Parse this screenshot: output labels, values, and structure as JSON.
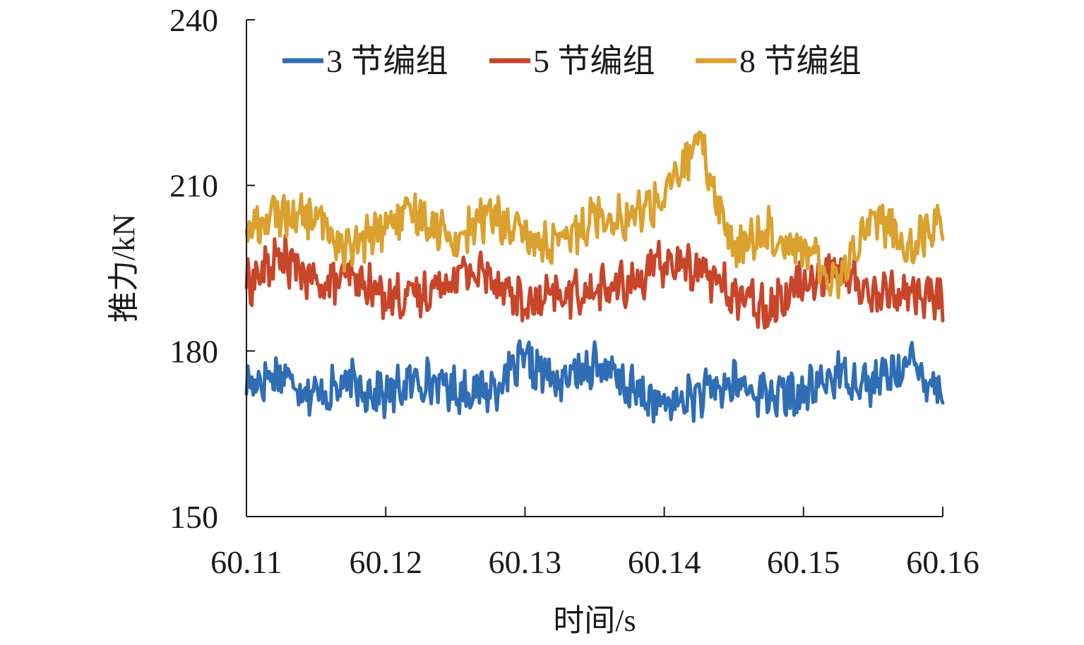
{
  "chart_data": {
    "type": "line",
    "title": "",
    "xlabel": "时间/s",
    "ylabel": "推力/kN",
    "xlim": [
      60.11,
      60.16
    ],
    "ylim": [
      150,
      240
    ],
    "xticks": [
      60.11,
      60.12,
      60.13,
      60.14,
      60.15,
      60.16
    ],
    "xtick_labels": [
      "60.11",
      "60.12",
      "60.13",
      "60.14",
      "60.15",
      "60.16"
    ],
    "yticks": [
      150,
      180,
      210,
      240
    ],
    "ytick_labels": [
      "150",
      "180",
      "210",
      "240"
    ],
    "grid": false,
    "legend_position": "top",
    "series": [
      {
        "name": "3 节编组",
        "color": "#2f6db5",
        "x": [
          60.11,
          60.1125,
          60.115,
          60.1175,
          60.12,
          60.1225,
          60.125,
          60.1275,
          60.13,
          60.1325,
          60.135,
          60.1375,
          60.14,
          60.1425,
          60.145,
          60.1475,
          60.15,
          60.1525,
          60.155,
          60.1575,
          60.16
        ],
        "y": [
          174,
          176,
          172,
          174,
          172,
          175,
          173,
          173,
          178,
          174,
          178,
          173,
          170,
          172,
          174,
          172,
          172,
          176,
          174,
          178,
          173
        ]
      },
      {
        "name": "5 节编组",
        "color": "#c9452a",
        "x": [
          60.11,
          60.1125,
          60.115,
          60.1175,
          60.12,
          60.1225,
          60.125,
          60.1275,
          60.13,
          60.1325,
          60.135,
          60.1375,
          60.14,
          60.1425,
          60.145,
          60.1475,
          60.15,
          60.1525,
          60.155,
          60.1575,
          60.16
        ],
        "y": [
          192,
          197,
          192,
          193,
          190,
          190,
          194,
          194,
          188,
          190,
          191,
          192,
          196,
          195,
          190,
          188,
          193,
          195,
          190,
          191,
          189
        ]
      },
      {
        "name": "8 节编组",
        "color": "#dba12e",
        "x": [
          60.11,
          60.1125,
          60.115,
          60.1175,
          60.12,
          60.1225,
          60.125,
          60.1275,
          60.13,
          60.1325,
          60.135,
          60.1375,
          60.14,
          60.1425,
          60.145,
          60.1475,
          60.15,
          60.1525,
          60.155,
          60.1575,
          60.16
        ],
        "y": [
          202,
          205,
          204,
          198,
          203,
          205,
          200,
          205,
          200,
          199,
          205,
          204,
          208,
          218,
          198,
          202,
          198,
          193,
          205,
          199,
          204
        ]
      }
    ]
  }
}
